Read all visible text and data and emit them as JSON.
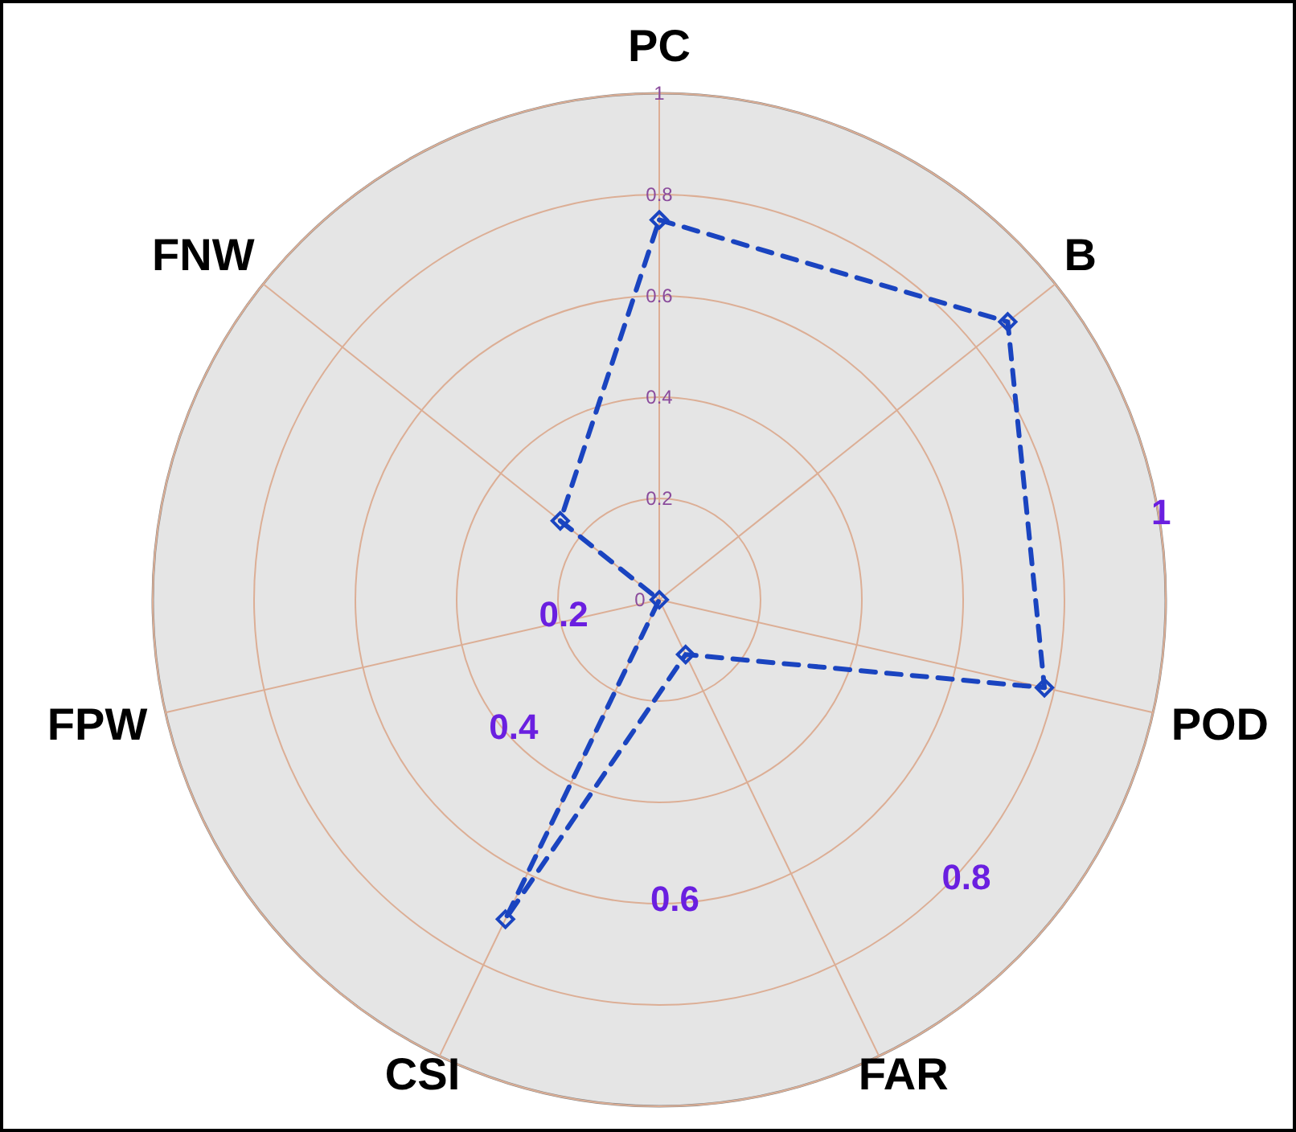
{
  "chart_data": {
    "type": "radar",
    "categories": [
      "PC",
      "B",
      "POD",
      "FAR",
      "CSI",
      "FPW",
      "FNW"
    ],
    "series": [
      {
        "color": "#1a44c0",
        "values": [
          0.75,
          0.88,
          0.78,
          0.12,
          0.7,
          0,
          0.25
        ]
      }
    ],
    "ylim": [
      0,
      1
    ],
    "yticks": [
      0,
      0.2,
      0.4,
      0.6,
      0.8,
      1
    ],
    "grid": true,
    "marker": "diamond",
    "line_style": "dashed",
    "annotations": [
      "0.2",
      "0.4",
      "0.6",
      "0.8",
      "1"
    ]
  }
}
